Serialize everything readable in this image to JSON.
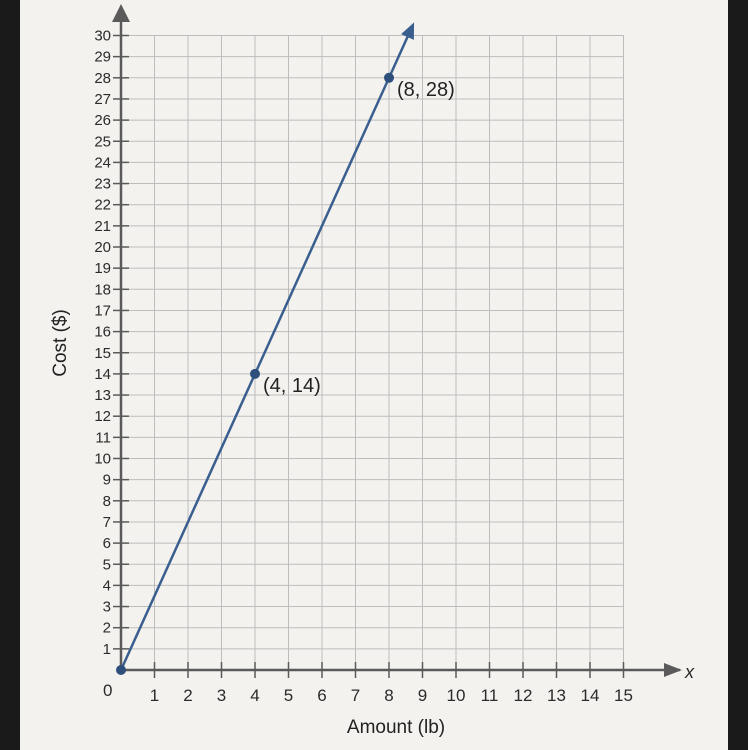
{
  "chart_data": {
    "type": "line",
    "xlabel": "Amount (lb)",
    "ylabel": "Cost ($)",
    "x_axis_letter": "x",
    "origin_label": "0",
    "xlim": [
      0,
      15
    ],
    "ylim": [
      0,
      30
    ],
    "x_ticks": [
      1,
      2,
      3,
      4,
      5,
      6,
      7,
      8,
      9,
      10,
      11,
      12,
      13,
      14,
      15
    ],
    "y_ticks": [
      1,
      2,
      3,
      4,
      5,
      6,
      7,
      8,
      9,
      10,
      11,
      12,
      13,
      14,
      15,
      16,
      17,
      18,
      19,
      20,
      21,
      22,
      23,
      24,
      25,
      26,
      27,
      28,
      29,
      30
    ],
    "grid": true,
    "series": [
      {
        "x": [
          0,
          4,
          8
        ],
        "y": [
          0,
          14,
          28
        ],
        "arrow_end": true
      }
    ],
    "points": [
      {
        "x": 0,
        "y": 0
      },
      {
        "x": 4,
        "y": 14,
        "label": "(4, 14)"
      },
      {
        "x": 8,
        "y": 28,
        "label": "(8, 28)"
      }
    ],
    "colors": {
      "line": "#3a5f8f",
      "point": "#2e4f7c",
      "grid": "#bdbdbd",
      "axis": "#5a5a5a",
      "paper": "#f3f2ef"
    }
  }
}
